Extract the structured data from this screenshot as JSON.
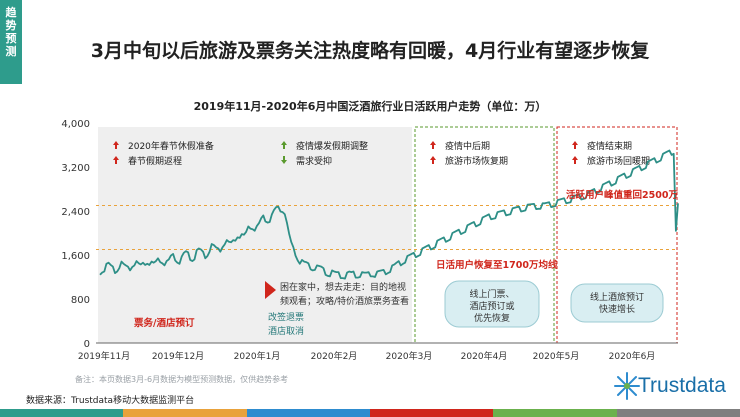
{
  "side_tab": [
    "趋",
    "势",
    "预",
    "测"
  ],
  "headline": "3月中旬以后旅游及票务关注热度略有回暖，4月行业有望逐步恢复",
  "footnote": "备注：本页数据3月-6月数据为模型预测数据，仅供趋势参考",
  "source": "数据来源：Trustdata移动大数据监测平台",
  "logo_text": "Trustdata",
  "colors": {
    "line": "#2e8f87",
    "accent_red": "#d0261c",
    "accent_green": "#5a9a2e",
    "teal_dark": "#26797a",
    "region_fill": "#efefef",
    "bottom_bar": [
      "#2e9c8c",
      "#e9a23b",
      "#2e8ccf",
      "#d0261c",
      "#6bb14d",
      "#7f7f7f"
    ]
  },
  "chart_data": {
    "type": "line",
    "title": "2019年11月-2020年6月中国泛酒旅行业日活跃用户走势（单位：万）",
    "ylim": [
      0,
      4000
    ],
    "yticks": [
      "0",
      "800",
      "1,600",
      "2,400",
      "3,200",
      "4,000"
    ],
    "xticks": [
      "2019年11月",
      "2019年12月",
      "2020年1月",
      "2020年2月",
      "2020年3月",
      "2020年4月",
      "2020年5月",
      "2020年6月"
    ],
    "reference_lines": [
      {
        "value": 2500
      },
      {
        "value": 1700
      }
    ],
    "series": [
      {
        "values": [
          1300,
          1340,
          1360,
          1400,
          1420,
          1380,
          1350,
          1330,
          1360,
          1420,
          1440,
          1400,
          1370,
          1350,
          1380,
          1440,
          1470,
          1450,
          1410,
          1390,
          1420,
          1480,
          1500,
          1480,
          1440,
          1420,
          1450,
          1500,
          1530,
          1510,
          1470,
          1450,
          1480,
          1550,
          1580,
          1560,
          1520,
          1500,
          1530,
          1600,
          1630,
          1610,
          1570,
          1550,
          1580,
          1650,
          1680,
          1660,
          1620,
          1600,
          1640,
          1720,
          1760,
          1740,
          1700,
          1680,
          1720,
          1800,
          1850,
          1830,
          1800,
          1790,
          1830,
          1920,
          1980,
          1970,
          1940,
          1930,
          1980,
          2080,
          2140,
          2130,
          2100,
          2090,
          2140,
          2230,
          2280,
          2270,
          2250,
          2260,
          2300,
          2380,
          2430,
          2440,
          2450,
          2440,
          2400,
          2150,
          1950,
          1800,
          1700,
          1650,
          1560,
          1500,
          1470,
          1440,
          1430,
          1410,
          1400,
          1380,
          1390,
          1370,
          1360,
          1350,
          1320,
          1300,
          1280,
          1270,
          1280,
          1260,
          1250,
          1250,
          1240,
          1240,
          1230,
          1240,
          1260,
          1250,
          1260,
          1250,
          1250,
          1260,
          1250,
          1240,
          1240,
          1250,
          1270,
          1270,
          1260,
          1260,
          1270,
          1280,
          1290,
          1310,
          1330,
          1350,
          1370,
          1390,
          1420,
          1450,
          1470,
          1500,
          1520,
          1540,
          1560,
          1580,
          1600,
          1620,
          1640,
          1660,
          1680,
          1700,
          1720,
          1740,
          1760,
          1780,
          1800,
          1820,
          1840,
          1860,
          1880,
          1900,
          1920,
          1940,
          1960,
          1980,
          2000,
          2020,
          2040,
          2060,
          2080,
          2100,
          2120,
          2140,
          2160,
          2180,
          2200,
          2220,
          2240,
          2260,
          2280,
          2300,
          2310,
          2320,
          2330,
          2340,
          2350,
          2360,
          2370,
          2380,
          2390,
          2400,
          2410,
          2420,
          2430,
          2440,
          2450,
          2460,
          2470,
          2475,
          2480,
          2485,
          2490,
          2495,
          2500,
          2500,
          2500,
          2500,
          2510,
          2520,
          2530,
          2540,
          2550,
          2560,
          2570,
          2580,
          2590,
          2600,
          2610,
          2620,
          2630,
          2640,
          2650,
          2660,
          2670,
          2680,
          2690,
          2700,
          2720,
          2740,
          2760,
          2780,
          2800,
          2820,
          2840,
          2860,
          2880,
          2900,
          2920,
          2940,
          2960,
          2980,
          3000,
          3020,
          3040,
          3060,
          3080,
          3100,
          3120,
          3140,
          3160,
          3180,
          3200,
          3220,
          3240,
          3260,
          3280,
          3300,
          3320,
          3340,
          3360,
          3380,
          3400,
          3420,
          3440,
          3460,
          3480,
          3500,
          2100,
          2500
        ]
      }
    ],
    "regions": [
      {
        "style": "gray",
        "lines": [
          "2020年春节休假准备",
          "春节假期返程"
        ],
        "arrows": [
          "up",
          "up"
        ],
        "arrow_color": "red"
      },
      {
        "style": "gray",
        "lines": [
          "疫情爆发假期调整",
          "需求受抑"
        ],
        "arrows": [
          "up",
          "down"
        ],
        "arrow_color": "green"
      },
      {
        "style": "green-dashed",
        "lines": [
          "疫情中后期",
          "旅游市场恢复期"
        ],
        "arrows": [
          "up",
          "up"
        ],
        "arrow_color": "red"
      },
      {
        "style": "red-dashed",
        "lines": [
          "疫情结束期",
          "旅游市场回暖期"
        ],
        "arrows": [
          "up",
          "up"
        ],
        "arrow_color": "red"
      }
    ],
    "annotations": {
      "peak_label": "活跃用户峰值重回2500万",
      "recover_label": "日活用户恢复至1700万均线",
      "ticket_label": "票务/酒店预订",
      "home_text_1": "困在家中，想去走走：目的地视",
      "home_text_2": "频观看；攻略/特价酒旅票务查看",
      "refund_1": "改签退票",
      "refund_2": "酒店取消",
      "bubble1": [
        "线上门票、",
        "酒店预订或",
        "优先恢复"
      ],
      "bubble2": [
        "线上酒旅预订",
        "快速增长"
      ]
    }
  }
}
